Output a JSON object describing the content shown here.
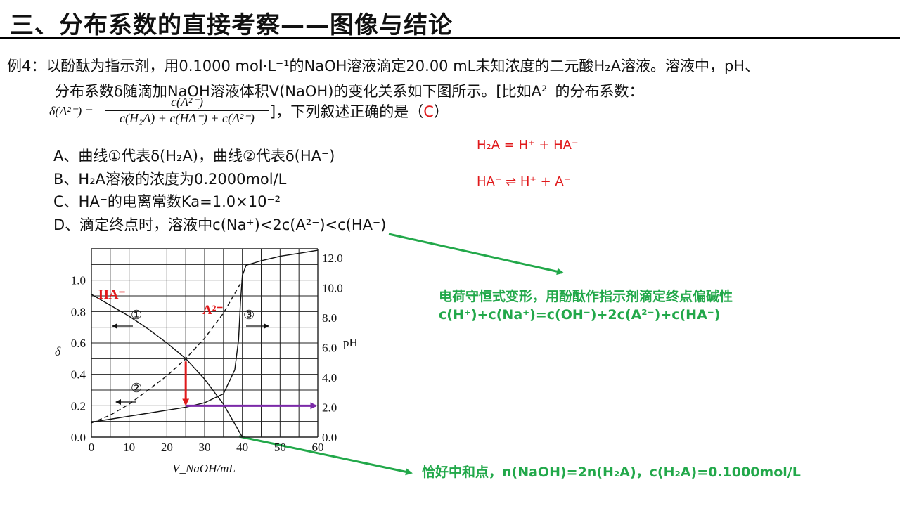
{
  "slide": {
    "title": "三、分布系数的直接考察——图像与结论"
  },
  "problem": {
    "line1": "例4：以酚酞为指示剂，用0.1000 mol·L⁻¹的NaOH溶液滴定20.00 mL未知浓度的二元酸H₂A溶液。溶液中，pH、",
    "line2": "分布系数δ随滴加NaOH溶液体积V(NaOH)的变化关系如下图所示。[比如A²⁻的分布系数：",
    "formula_lhs": "δ(A²⁻) =",
    "formula_num": "c(A²⁻)",
    "formula_den": "c(H₂A) + c(HA⁻) + c(A²⁻)",
    "line3_suffix": "]，下列叙述正确的是（",
    "answer": "C",
    "line3_close": "）"
  },
  "options": [
    "A、曲线①代表δ(H₂A)，曲线②代表δ(HA⁻)",
    "B、H₂A溶液的浓度为0.2000mol/L",
    "C、HA⁻的电离常数Ka=1.0×10⁻²",
    "D、滴定终点时，溶液中c(Na⁺)<2c(A²⁻)<c(HA⁻)"
  ],
  "equations": {
    "eq1": "H₂A = H⁺ + HA⁻",
    "eq2": "HA⁻ ⇌ H⁺ + A⁻"
  },
  "notes": {
    "note1_line1": "电荷守恒式变形，用酚酞作指示剂滴定终点偏碱性",
    "note1_line2": "c(H⁺)+c(Na⁺)=c(OH⁻)+2c(A²⁻)+c(HA⁻)",
    "note2": "恰好中和点，n(NaOH)=2n(H₂A)，c(H₂A)=0.1000mol/L"
  },
  "colors": {
    "red": "#e0191b",
    "green": "#22a84a",
    "purple": "#7b2aa8",
    "black": "#111111"
  },
  "chart_data": {
    "type": "line",
    "xlabel": "V_NaOH/mL",
    "ylabel_left": "δ",
    "ylabel_right": "pH",
    "x_ticks": [
      "0",
      "10",
      "20",
      "30",
      "40",
      "50",
      "60"
    ],
    "y_left_ticks": [
      "0.0",
      "0.2",
      "0.4",
      "0.6",
      "0.8",
      "1.0"
    ],
    "y_right_ticks": [
      "0.0",
      "2.0",
      "4.0",
      "6.0",
      "8.0",
      "10.0",
      "12.0"
    ],
    "xlim": [
      0,
      60
    ],
    "ylim_left": [
      0,
      1.2
    ],
    "ylim_right": [
      0,
      12.6
    ],
    "grid": true,
    "labels": {
      "curve1": "①",
      "curve2": "②",
      "curve3": "③",
      "ha": "HA⁻",
      "a2": "A²⁻"
    },
    "series": [
      {
        "name": "①",
        "axis": "left",
        "style": "solid",
        "x": [
          0,
          5,
          10,
          15,
          20,
          25,
          30,
          35,
          40
        ],
        "y": [
          0.91,
          0.84,
          0.77,
          0.69,
          0.6,
          0.5,
          0.37,
          0.21,
          0.0
        ]
      },
      {
        "name": "②",
        "axis": "left",
        "style": "dashed",
        "x": [
          0,
          5,
          10,
          15,
          20,
          25,
          30,
          35,
          40
        ],
        "y": [
          0.09,
          0.14,
          0.21,
          0.3,
          0.39,
          0.5,
          0.63,
          0.79,
          1.0
        ]
      },
      {
        "name": "③",
        "axis": "right",
        "style": "solid",
        "x": [
          0,
          5,
          10,
          15,
          20,
          25,
          30,
          35,
          38,
          39,
          39.5,
          40,
          41,
          45,
          50,
          55,
          60
        ],
        "y": [
          1.0,
          1.2,
          1.4,
          1.6,
          1.8,
          2.0,
          2.3,
          2.9,
          4.5,
          6.5,
          9.0,
          10.8,
          11.5,
          11.8,
          12.1,
          12.3,
          12.5
        ]
      }
    ]
  }
}
